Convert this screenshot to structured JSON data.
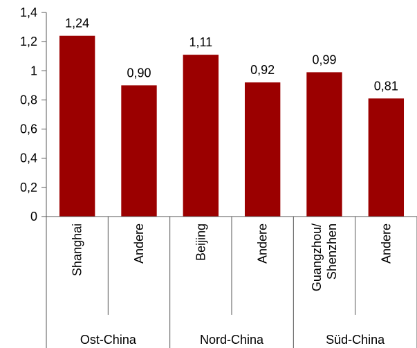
{
  "chart_data": {
    "type": "bar",
    "title": "",
    "xlabel": "",
    "ylabel": "",
    "ylim": [
      0,
      1.4
    ],
    "y_ticks": [
      0,
      0.2,
      0.4,
      0.6,
      0.8,
      1.0,
      1.2,
      1.4
    ],
    "y_tick_labels": [
      "0",
      "0,2",
      "0,4",
      "0,6",
      "0,8",
      "1",
      "1,2",
      "1,4"
    ],
    "categories": [
      [
        "Shanghai"
      ],
      [
        "Andere"
      ],
      [
        "Beijing"
      ],
      [
        "Andere"
      ],
      [
        "Guangzhou/",
        "Shenzhen"
      ],
      [
        "Andere"
      ]
    ],
    "values": [
      1.24,
      0.9,
      1.11,
      0.92,
      0.99,
      0.81
    ],
    "data_labels": [
      "1,24",
      "0,90",
      "1,11",
      "0,92",
      "0,99",
      "0,81"
    ],
    "groups": [
      "Ost-China",
      "Nord-China",
      "Süd-China"
    ],
    "bar_color": "#9b0000",
    "grid": false,
    "legend": "none"
  }
}
